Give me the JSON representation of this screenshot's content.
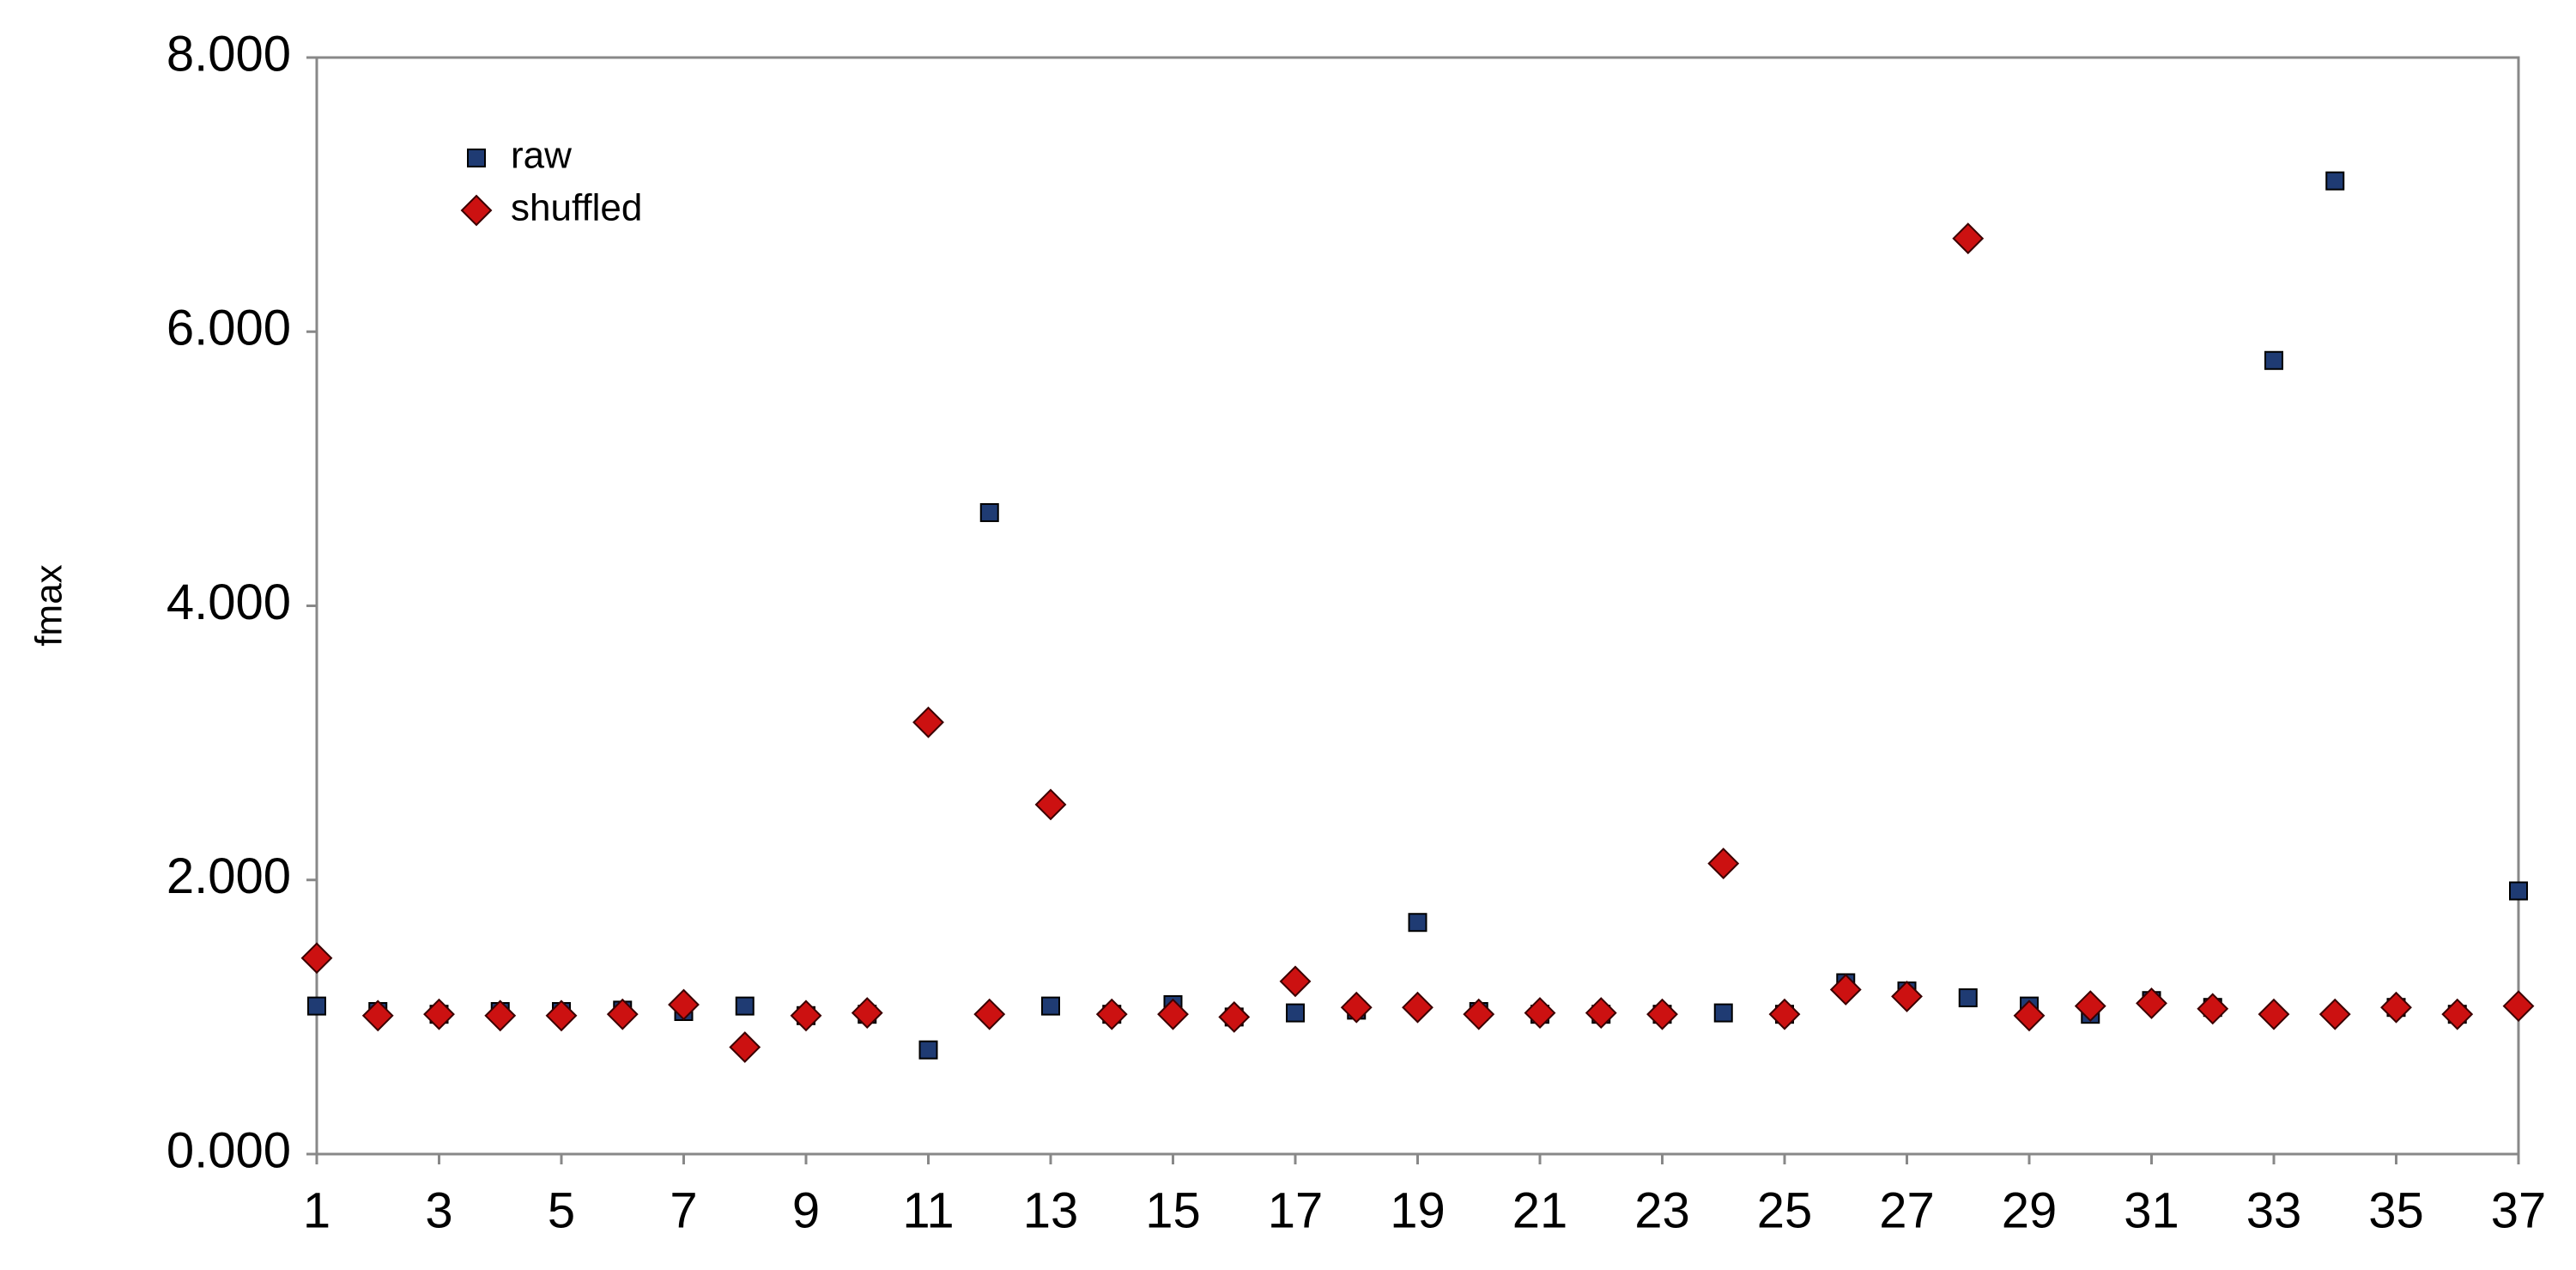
{
  "chart_data": {
    "type": "scatter",
    "y_label": "fmax",
    "x": [
      1,
      2,
      3,
      4,
      5,
      6,
      7,
      8,
      9,
      10,
      11,
      12,
      13,
      14,
      15,
      16,
      17,
      18,
      19,
      20,
      21,
      22,
      23,
      24,
      25,
      26,
      27,
      28,
      29,
      30,
      31,
      32,
      33,
      34,
      35,
      36,
      37
    ],
    "series": [
      {
        "name": "raw",
        "color": "#1f3b73",
        "marker": "square",
        "values": [
          1.08,
          1.04,
          1.02,
          1.04,
          1.04,
          1.05,
          1.04,
          1.08,
          1.01,
          1.02,
          0.76,
          4.68,
          1.08,
          1.02,
          1.09,
          1.0,
          1.03,
          1.05,
          1.69,
          1.04,
          1.02,
          1.02,
          1.02,
          1.03,
          1.02,
          1.25,
          1.19,
          1.14,
          1.08,
          1.02,
          1.12,
          1.07,
          5.79,
          7.1,
          1.07,
          1.02,
          1.92
        ]
      },
      {
        "name": "shuffled",
        "color": "#cc1111",
        "marker": "diamond",
        "values": [
          1.43,
          1.01,
          1.02,
          1.01,
          1.01,
          1.02,
          1.09,
          0.78,
          1.01,
          1.03,
          3.15,
          1.02,
          2.55,
          1.02,
          1.02,
          1.0,
          1.26,
          1.07,
          1.07,
          1.02,
          1.03,
          1.03,
          1.02,
          2.12,
          1.02,
          1.2,
          1.15,
          6.68,
          1.01,
          1.08,
          1.1,
          1.06,
          1.02,
          1.02,
          1.07,
          1.02,
          1.08
        ]
      }
    ],
    "xlim": [
      1,
      37
    ],
    "xticks": [
      1,
      3,
      5,
      7,
      9,
      11,
      13,
      15,
      17,
      19,
      21,
      23,
      25,
      27,
      29,
      31,
      33,
      35,
      37
    ],
    "ylim": [
      0,
      8
    ],
    "yticks": [
      {
        "value": 0,
        "label": "0.000"
      },
      {
        "value": 2,
        "label": "2.000"
      },
      {
        "value": 4,
        "label": "4.000"
      },
      {
        "value": 6,
        "label": "6.000"
      },
      {
        "value": 8,
        "label": "8.000"
      }
    ],
    "grid": false,
    "legend": "top-left"
  }
}
